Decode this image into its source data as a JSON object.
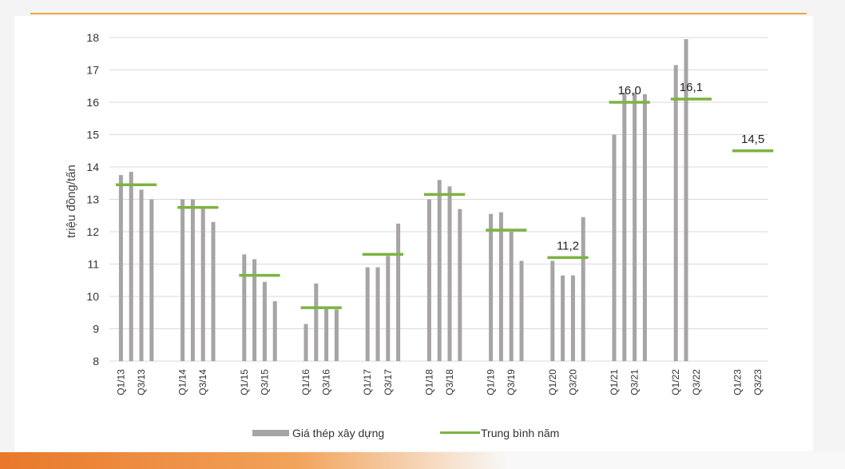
{
  "colors": {
    "bar": "#a6a4a4",
    "avg": "#7cb342",
    "grid": "#d9d9d9",
    "accent": "#f0a646"
  },
  "chart_data": {
    "type": "bar",
    "ylabel": "triệu đồng/tấn",
    "ylim": [
      8,
      18
    ],
    "yticks": [
      8,
      9,
      10,
      11,
      12,
      13,
      14,
      15,
      16,
      17,
      18
    ],
    "grid": true,
    "legend_position": "bottom",
    "series": [
      {
        "name": "Giá thép xây dựng",
        "type": "bar"
      },
      {
        "name": "Trung bình năm",
        "type": "line-segment"
      }
    ],
    "groups": [
      {
        "year": "2013",
        "ticks": [
          "Q1/13",
          "Q3/13"
        ],
        "values": [
          13.75,
          13.85,
          13.3,
          13.0
        ],
        "avg": 13.45
      },
      {
        "year": "2014",
        "ticks": [
          "Q1/14",
          "Q3/14"
        ],
        "values": [
          13.0,
          13.0,
          12.75,
          12.3
        ],
        "avg": 12.75
      },
      {
        "year": "2015",
        "ticks": [
          "Q1/15",
          "Q3/15"
        ],
        "values": [
          11.3,
          11.15,
          10.45,
          9.85
        ],
        "avg": 10.65
      },
      {
        "year": "2016",
        "ticks": [
          "Q1/16",
          "Q3/16"
        ],
        "values": [
          9.15,
          10.4,
          9.65,
          9.6
        ],
        "avg": 9.65
      },
      {
        "year": "2017",
        "ticks": [
          "Q1/17",
          "Q3/17"
        ],
        "values": [
          10.9,
          10.9,
          11.25,
          12.25
        ],
        "avg": 11.3
      },
      {
        "year": "2018",
        "ticks": [
          "Q1/18",
          "Q3/18"
        ],
        "values": [
          13.0,
          13.6,
          13.4,
          12.7
        ],
        "avg": 13.15
      },
      {
        "year": "2019",
        "ticks": [
          "Q1/19",
          "Q3/19"
        ],
        "values": [
          12.55,
          12.6,
          12.0,
          11.1
        ],
        "avg": 12.05
      },
      {
        "year": "2020",
        "ticks": [
          "Q1/20",
          "Q3/20"
        ],
        "values": [
          11.1,
          10.65,
          10.65,
          12.45
        ],
        "avg": 11.2,
        "label": "11,2"
      },
      {
        "year": "2021",
        "ticks": [
          "Q1/21",
          "Q3/21"
        ],
        "values": [
          15.0,
          16.3,
          16.3,
          16.25
        ],
        "avg": 16.0,
        "label": "16,0"
      },
      {
        "year": "2022",
        "ticks": [
          "Q1/22",
          "Q3/22"
        ],
        "values": [
          17.15,
          17.95
        ],
        "avg": 16.1,
        "label": "16,1"
      },
      {
        "year": "2023",
        "ticks": [
          "Q1/23",
          "Q3/23"
        ],
        "values": [],
        "avg": 14.5,
        "label": "14,5"
      }
    ]
  }
}
